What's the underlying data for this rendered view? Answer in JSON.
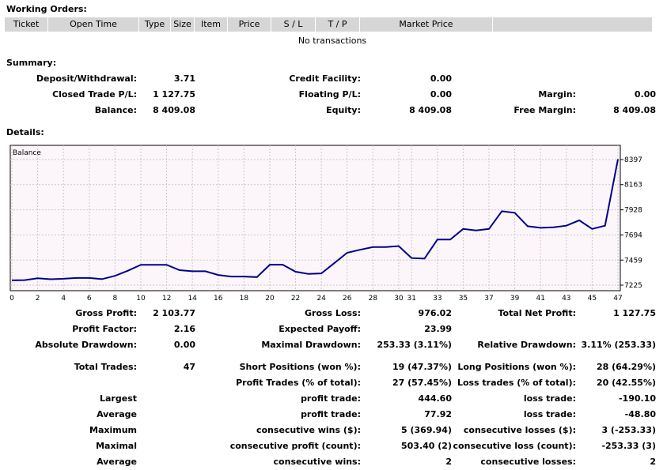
{
  "working_orders": {
    "title": "Working Orders:",
    "columns": [
      "Ticket",
      "Open Time",
      "Type",
      "Size",
      "Item",
      "Price",
      "S / L",
      "T / P",
      "Market Price",
      ""
    ],
    "empty_message": "No transactions"
  },
  "summary": {
    "title": "Summary:",
    "deposit_label": "Deposit/Withdrawal:",
    "deposit": "3.71",
    "credit_label": "Credit Facility:",
    "credit": "0.00",
    "closed_pl_label": "Closed Trade P/L:",
    "closed_pl": "1 127.75",
    "floating_pl_label": "Floating P/L:",
    "floating_pl": "0.00",
    "margin_label": "Margin:",
    "margin": "0.00",
    "balance_label": "Balance:",
    "balance": "8 409.08",
    "equity_label": "Equity:",
    "equity": "8 409.08",
    "free_margin_label": "Free Margin:",
    "free_margin": "8 409.08"
  },
  "details": {
    "title": "Details:"
  },
  "chart_data": {
    "type": "line",
    "title": "Balance",
    "x_ticks": [
      "0",
      "2",
      "4",
      "6",
      "8",
      "10",
      "12",
      "14",
      "16",
      "18",
      "20",
      "22",
      "24",
      "26",
      "28",
      "30",
      "31",
      "33",
      "35",
      "37",
      "39",
      "41",
      "43",
      "45",
      "47"
    ],
    "y_ticks": [
      "8397",
      "8163",
      "7928",
      "7694",
      "7459",
      "7225"
    ],
    "ylim": [
      7225,
      8397
    ],
    "x": [
      0,
      1,
      2,
      3,
      4,
      5,
      6,
      7,
      8,
      9,
      10,
      11,
      12,
      13,
      14,
      15,
      16,
      17,
      18,
      19,
      20,
      21,
      22,
      23,
      24,
      25,
      26,
      27,
      28,
      29,
      30,
      31,
      32,
      33,
      34,
      35,
      36,
      37,
      38,
      39,
      40,
      41,
      42,
      43,
      44,
      45,
      46,
      47
    ],
    "series": [
      {
        "color": "#00008b",
        "values": [
          7270,
          7272,
          7290,
          7280,
          7285,
          7292,
          7292,
          7282,
          7312,
          7360,
          7415,
          7415,
          7415,
          7365,
          7355,
          7355,
          7320,
          7305,
          7305,
          7300,
          7416,
          7416,
          7350,
          7330,
          7335,
          7430,
          7527,
          7555,
          7580,
          7580,
          7590,
          7478,
          7473,
          7650,
          7650,
          7750,
          7735,
          7750,
          7915,
          7900,
          7775,
          7760,
          7765,
          7780,
          7830,
          7750,
          7780,
          8400
        ]
      }
    ]
  },
  "stats": {
    "gross_profit_label": "Gross Profit:",
    "gross_profit": "2 103.77",
    "gross_loss_label": "Gross Loss:",
    "gross_loss": "976.02",
    "total_net_profit_label": "Total Net Profit:",
    "total_net_profit": "1 127.75",
    "profit_factor_label": "Profit Factor:",
    "profit_factor": "2.16",
    "expected_payoff_label": "Expected Payoff:",
    "expected_payoff": "23.99",
    "absolute_drawdown_label": "Absolute Drawdown:",
    "absolute_drawdown": "0.00",
    "maximal_drawdown_label": "Maximal Drawdown:",
    "maximal_drawdown": "253.33 (3.11%)",
    "relative_drawdown_label": "Relative Drawdown:",
    "relative_drawdown": "3.11% (253.33)",
    "total_trades_label": "Total Trades:",
    "total_trades": "47",
    "short_positions_label": "Short Positions (won %):",
    "short_positions": "19 (47.37%)",
    "long_positions_label": "Long Positions (won %):",
    "long_positions": "28 (64.29%)",
    "profit_trades_label": "Profit Trades (% of total):",
    "profit_trades": "27 (57.45%)",
    "loss_trades_label": "Loss trades (% of total):",
    "loss_trades": "20 (42.55%)",
    "largest_label": "Largest",
    "largest_profit_label": "profit trade:",
    "largest_profit": "444.60",
    "largest_loss_label": "loss trade:",
    "largest_loss": "-190.10",
    "average_label": "Average",
    "average_profit_label": "profit trade:",
    "average_profit": "77.92",
    "average_loss_label": "loss trade:",
    "average_loss": "-48.80",
    "maximum_label": "Maximum",
    "max_cons_wins_label": "consecutive wins ($):",
    "max_cons_wins": "5 (369.94)",
    "max_cons_losses_label": "consecutive losses ($):",
    "max_cons_losses": "3 (-253.33)",
    "maximal_label": "Maximal",
    "maximal_cons_profit_label": "consecutive profit (count):",
    "maximal_cons_profit": "503.40 (2)",
    "maximal_cons_loss_label": "consecutive loss (count):",
    "maximal_cons_loss": "-253.33 (3)",
    "average2_label": "Average",
    "avg_cons_wins_label": "consecutive wins:",
    "avg_cons_wins": "2",
    "avg_cons_losses_label": "consecutive losses:",
    "avg_cons_losses": "2"
  }
}
